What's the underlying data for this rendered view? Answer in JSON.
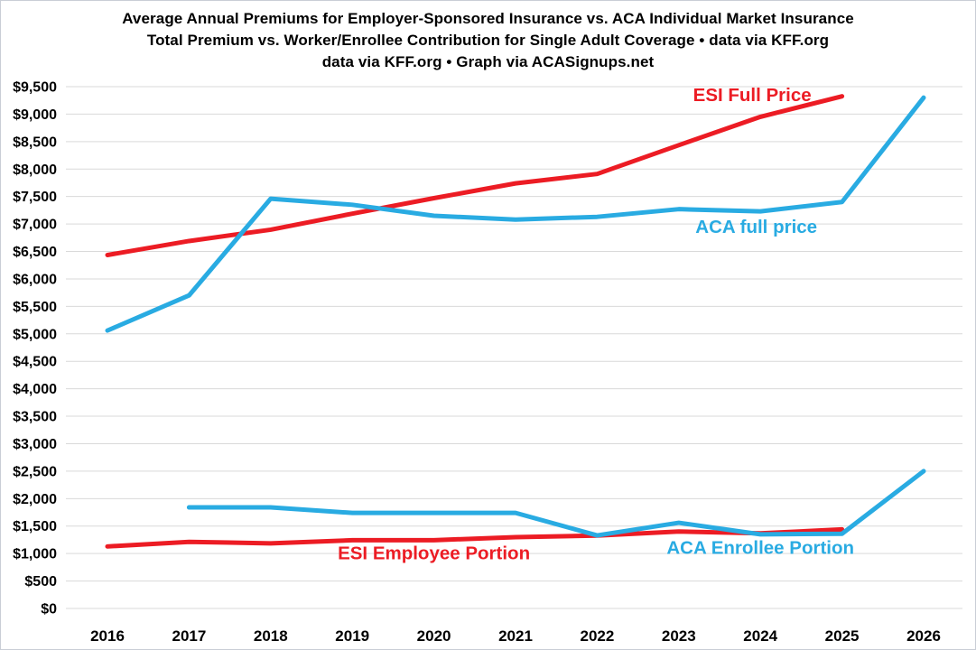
{
  "title": {
    "line1": "Average Annual Premiums for Employer-Sponsored Insurance vs. ACA Individual Market Insurance",
    "line2": "Total Premium vs. Worker/Enrollee Contribution for Single Adult Coverage • data via KFF.org",
    "line3": "data via KFF.org • Graph via ACASignups.net"
  },
  "colors": {
    "esi_red": "#ec1c24",
    "aca_blue": "#29abe2",
    "gridline": "#d9d9d9",
    "axis_text": "#000000",
    "background": "#ffffff",
    "frame_border": "#c9ced6"
  },
  "chart_data": {
    "type": "line",
    "title": "Average Annual Premiums for Employer-Sponsored Insurance vs. ACA Individual Market Insurance",
    "subtitle": "Total Premium vs. Worker/Enrollee Contribution for Single Adult Coverage • data via KFF.org • Graph via ACASignups.net",
    "categories": [
      2016,
      2017,
      2018,
      2019,
      2020,
      2021,
      2022,
      2023,
      2024,
      2025,
      2026
    ],
    "series": [
      {
        "id": "esi-full-price",
        "name": "ESI Full Price",
        "color_key": "esi_red",
        "color": "#ec1c24",
        "values": [
          6435,
          6690,
          6896,
          7188,
          7470,
          7739,
          7911,
          8435,
          8951,
          9325,
          null
        ],
        "label": {
          "text": "ESI Full Price",
          "x_year": 2023.9,
          "y_value": 9350
        }
      },
      {
        "id": "aca-full-price",
        "name": "ACA full price",
        "color_key": "aca_blue",
        "color": "#29abe2",
        "values": [
          5060,
          5700,
          7460,
          7350,
          7150,
          7080,
          7130,
          7270,
          7230,
          7400,
          9300
        ],
        "label": {
          "text": "ACA full price",
          "x_year": 2023.95,
          "y_value": 6950
        }
      },
      {
        "id": "esi-employee-portion",
        "name": "ESI Employee Portion",
        "color_key": "esi_red",
        "color": "#ec1c24",
        "values": [
          1129,
          1213,
          1186,
          1242,
          1243,
          1299,
          1327,
          1401,
          1368,
          1440,
          null
        ],
        "label": {
          "text": "ESI Employee Portion",
          "x_year": 2020.0,
          "y_value": 1010
        }
      },
      {
        "id": "aca-enrollee-portion",
        "name": "ACA Enrollee Portion",
        "color_key": "aca_blue",
        "color": "#29abe2",
        "values": [
          null,
          1840,
          1840,
          1740,
          1740,
          1740,
          1330,
          1560,
          1350,
          1360,
          2500
        ],
        "label": {
          "text": "ACA Enrollee Portion",
          "x_year": 2024.0,
          "y_value": 1110
        }
      }
    ],
    "xlabel": "",
    "ylabel": "",
    "grid": true,
    "legend": "inline-labels",
    "y_axis": {
      "min": 0,
      "max": 9500,
      "step": 500,
      "tick_labels": [
        "$0",
        "$500",
        "$1,000",
        "$1,500",
        "$2,000",
        "$2,500",
        "$3,000",
        "$3,500",
        "$4,000",
        "$4,500",
        "$5,000",
        "$5,500",
        "$6,000",
        "$6,500",
        "$7,000",
        "$7,500",
        "$8,000",
        "$8,500",
        "$9,000",
        "$9,500"
      ]
    },
    "x_axis": {
      "labels": [
        "2016",
        "2017",
        "2018",
        "2019",
        "2020",
        "2021",
        "2022",
        "2023",
        "2024",
        "2025",
        "2026"
      ]
    }
  }
}
